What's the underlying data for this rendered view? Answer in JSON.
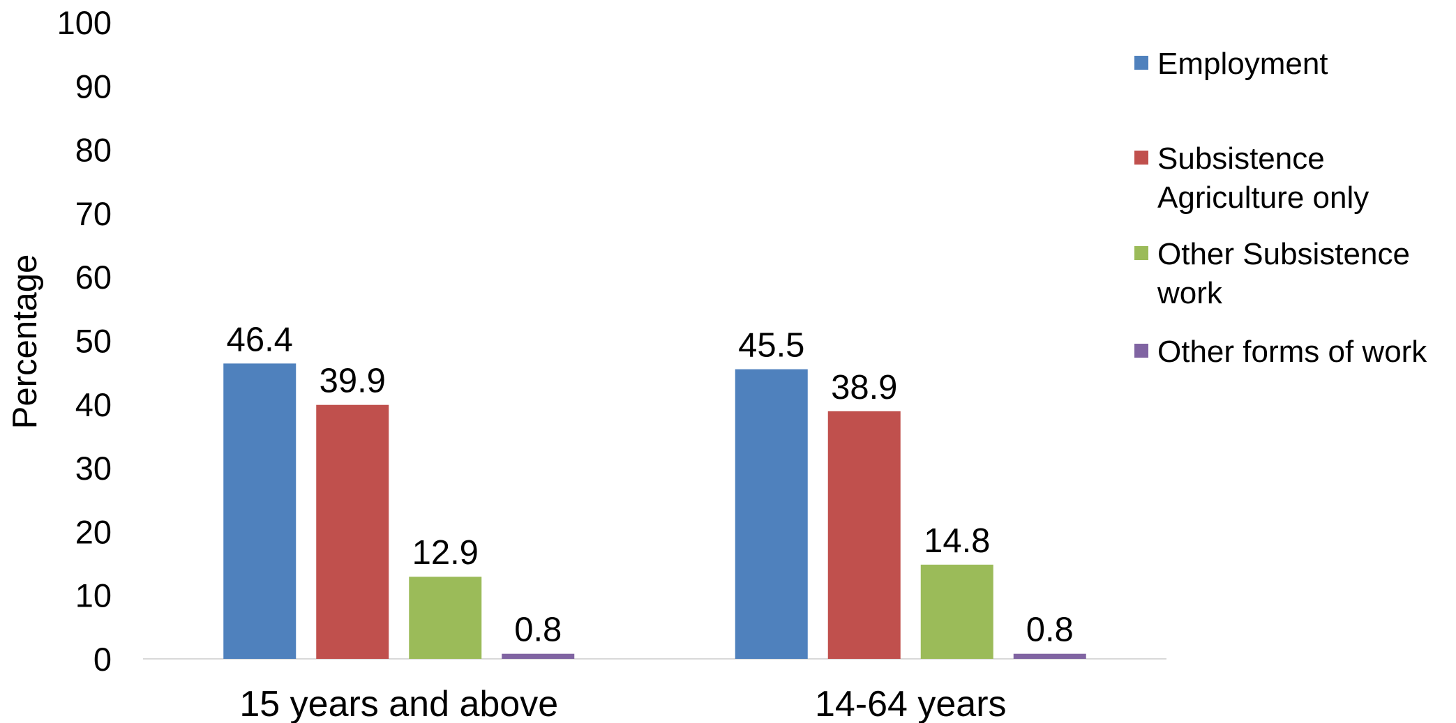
{
  "chart_data": {
    "type": "bar",
    "title": "",
    "xlabel": "",
    "ylabel": "Percentage",
    "ylim": [
      0,
      100
    ],
    "yticks": [
      0,
      10,
      20,
      30,
      40,
      50,
      60,
      70,
      80,
      90,
      100
    ],
    "grid": false,
    "legend_position": "right",
    "categories": [
      "15 years and above",
      "14-64 years"
    ],
    "series": [
      {
        "name": "Employment",
        "color": "#4F81BD",
        "values": [
          46.4,
          45.5
        ],
        "labels": [
          "46.4",
          "45.5"
        ]
      },
      {
        "name": "Subsistence Agriculture only",
        "legend_lines": [
          "Subsistence",
          "Agriculture only"
        ],
        "color": "#C0504D",
        "values": [
          39.9,
          38.9
        ],
        "labels": [
          "39.9",
          "38.9"
        ]
      },
      {
        "name": "Other Subsistence work",
        "legend_lines": [
          "Other Subsistence",
          "work"
        ],
        "color": "#9BBB59",
        "values": [
          12.9,
          14.8
        ],
        "labels": [
          "12.9",
          "14.8"
        ]
      },
      {
        "name": "Other forms of work",
        "color": "#8064A2",
        "values": [
          0.8,
          0.8
        ],
        "labels": [
          "0.8",
          "0.8"
        ]
      }
    ]
  }
}
